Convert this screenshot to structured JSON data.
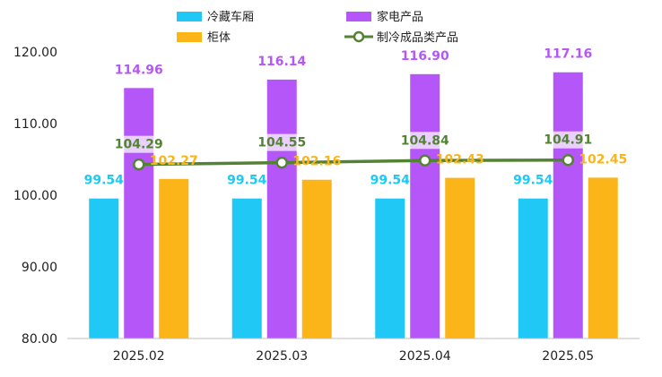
{
  "chart_data": {
    "type": "bar",
    "categories": [
      "2025.02",
      "2025.03",
      "2025.04",
      "2025.05"
    ],
    "series": [
      {
        "name": "冷藏车厢",
        "kind": "bar",
        "color": "#1fc8f5",
        "values": [
          99.54,
          99.54,
          99.54,
          99.54
        ],
        "labels": [
          "99.54",
          "99.54",
          "99.54",
          "99.54"
        ]
      },
      {
        "name": "家电产品",
        "kind": "bar",
        "color": "#b557f8",
        "values": [
          114.96,
          116.14,
          116.9,
          117.16
        ],
        "labels": [
          "114.96",
          "116.14",
          "116.90",
          "117.16"
        ]
      },
      {
        "name": "柜体",
        "kind": "bar",
        "color": "#fbb519",
        "values": [
          102.27,
          102.16,
          102.43,
          102.45
        ],
        "labels": [
          "102.27",
          "102.16",
          "102.43",
          "102.45"
        ]
      },
      {
        "name": "制冷成品类产品",
        "kind": "line",
        "color": "#548235",
        "values": [
          104.29,
          104.55,
          104.84,
          104.91
        ],
        "labels": [
          "104.29",
          "104.55",
          "104.84",
          "104.91"
        ]
      }
    ],
    "y_ticks": [
      "80.00",
      "90.00",
      "100.00",
      "110.00",
      "120.00"
    ],
    "ylim": [
      80,
      120
    ],
    "grid": false,
    "legend": "top"
  }
}
